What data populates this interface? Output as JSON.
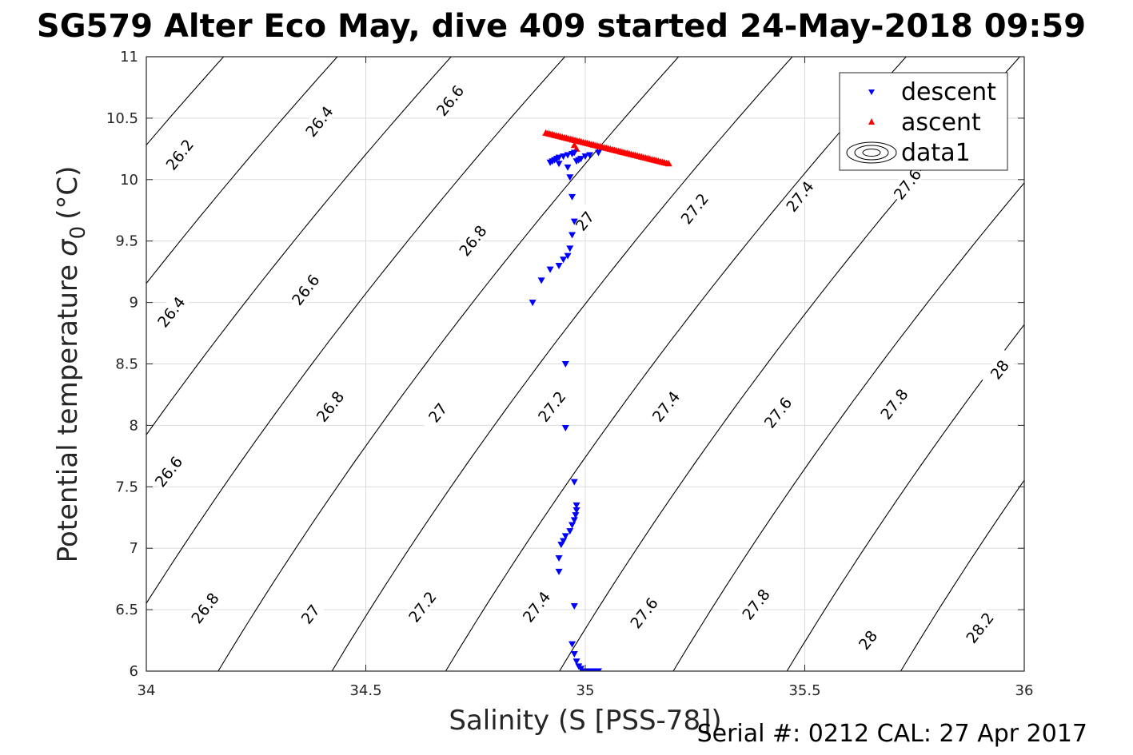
{
  "chart_data": {
    "type": "scatter",
    "title": "SG579 Alter Eco May, dive 409 started 24-May-2018 09:59",
    "xlabel": "Salinity (S [PSS-78])",
    "ylabel": "Potential temperature",
    "ylabel_symbol": "σ",
    "ylabel_subscript": "0",
    "ylabel_unit": "(°C)",
    "xlim": [
      34,
      36
    ],
    "ylim": [
      6,
      11
    ],
    "xticks": [
      34,
      34.5,
      35,
      35.5,
      36
    ],
    "xtick_labels": [
      "34",
      "34.5",
      "35",
      "35.5",
      "36"
    ],
    "yticks": [
      6,
      6.5,
      7,
      7.5,
      8,
      8.5,
      9,
      9.5,
      10,
      10.5,
      11
    ],
    "ytick_labels": [
      "6",
      "6.5",
      "7",
      "7.5",
      "8",
      "8.5",
      "9",
      "9.5",
      "10",
      "10.5",
      "11"
    ],
    "grid": true,
    "legend_position": "top-right",
    "colors": {
      "descent": "#0000ff",
      "ascent": "#ff0000",
      "contour": "#000000",
      "grid": "#dcdcdc"
    },
    "series": [
      {
        "name": "descent",
        "marker": "triangle-down",
        "x": [
          34.88,
          34.9,
          34.92,
          34.94,
          34.95,
          34.96,
          34.965,
          34.97,
          34.975,
          34.97,
          34.965,
          34.96,
          34.94,
          34.92,
          34.925,
          34.93,
          34.935,
          34.94,
          34.95,
          34.96,
          34.97,
          34.975,
          34.98,
          34.985,
          34.99,
          35.0,
          35.01,
          35.03,
          34.955,
          34.955,
          34.975,
          34.95,
          34.945,
          34.94,
          34.94,
          34.955,
          34.965,
          34.97,
          34.975,
          34.978,
          34.98,
          34.98,
          34.975,
          34.97,
          34.975,
          34.98,
          34.985,
          34.99,
          34.995,
          35.0,
          35.01,
          35.02,
          35.03
        ],
        "y": [
          9.0,
          9.18,
          9.27,
          9.3,
          9.35,
          9.38,
          9.44,
          9.55,
          9.66,
          9.86,
          10.02,
          10.1,
          10.13,
          10.14,
          10.15,
          10.16,
          10.17,
          10.18,
          10.19,
          10.2,
          10.21,
          10.22,
          10.15,
          10.16,
          10.17,
          10.19,
          10.2,
          10.22,
          8.5,
          7.98,
          7.54,
          7.06,
          7.03,
          6.92,
          6.81,
          7.1,
          7.14,
          7.19,
          7.23,
          7.27,
          7.31,
          7.35,
          6.53,
          6.22,
          6.14,
          6.08,
          6.04,
          6.02,
          6.0,
          6.0,
          6.0,
          6.0,
          6.0
        ]
      },
      {
        "name": "ascent",
        "marker": "triangle-up",
        "x_start": 34.91,
        "y_start": 10.38,
        "x_end": 35.19,
        "y_end": 10.13,
        "count": 60,
        "x_extra": [
          34.975,
          34.98
        ],
        "y_extra": [
          10.28,
          10.25
        ]
      },
      {
        "name": "data1",
        "marker": "contour"
      }
    ],
    "contours": [
      {
        "level": 26.2,
        "label": "26.2"
      },
      {
        "level": 26.4,
        "label": "26.4"
      },
      {
        "level": 26.6,
        "label": "26.6"
      },
      {
        "level": 26.8,
        "label": "26.8"
      },
      {
        "level": 27.0,
        "label": "27"
      },
      {
        "level": 27.2,
        "label": "27.2"
      },
      {
        "level": 27.4,
        "label": "27.4"
      },
      {
        "level": 27.6,
        "label": "27.6"
      },
      {
        "level": 27.8,
        "label": "27.8"
      },
      {
        "level": 28.0,
        "label": "28"
      },
      {
        "level": 28.2,
        "label": "28.2"
      }
    ],
    "contour_labels": [
      {
        "text": "26.2",
        "x": 34.077,
        "y": 10.2
      },
      {
        "text": "26.4",
        "x": 34.395,
        "y": 10.47
      },
      {
        "text": "26.6",
        "x": 34.693,
        "y": 10.64
      },
      {
        "text": "26.4",
        "x": 34.058,
        "y": 8.92
      },
      {
        "text": "26.6",
        "x": 34.364,
        "y": 9.1
      },
      {
        "text": "26.8",
        "x": 34.745,
        "y": 9.5
      },
      {
        "text": "27",
        "x": 35.0,
        "y": 9.66
      },
      {
        "text": "27.2",
        "x": 35.25,
        "y": 9.76
      },
      {
        "text": "27.4",
        "x": 35.49,
        "y": 9.86
      },
      {
        "text": "27.6",
        "x": 35.735,
        "y": 9.96
      },
      {
        "text": "26.6",
        "x": 34.052,
        "y": 7.62
      },
      {
        "text": "26.8",
        "x": 34.42,
        "y": 8.15
      },
      {
        "text": "27",
        "x": 34.665,
        "y": 8.1
      },
      {
        "text": "27.2",
        "x": 34.925,
        "y": 8.15
      },
      {
        "text": "27.4",
        "x": 35.185,
        "y": 8.15
      },
      {
        "text": "27.6",
        "x": 35.44,
        "y": 8.1
      },
      {
        "text": "27.8",
        "x": 35.705,
        "y": 8.17
      },
      {
        "text": "28",
        "x": 35.945,
        "y": 8.45
      },
      {
        "text": "26.8",
        "x": 34.135,
        "y": 6.51
      },
      {
        "text": "27",
        "x": 34.375,
        "y": 6.46
      },
      {
        "text": "27.2",
        "x": 34.63,
        "y": 6.52
      },
      {
        "text": "27.4",
        "x": 34.89,
        "y": 6.52
      },
      {
        "text": "27.6",
        "x": 35.135,
        "y": 6.47
      },
      {
        "text": "27.8",
        "x": 35.39,
        "y": 6.54
      },
      {
        "text": "28",
        "x": 35.645,
        "y": 6.25
      },
      {
        "text": "28.2",
        "x": 35.9,
        "y": 6.35
      }
    ]
  },
  "legend": {
    "items": [
      {
        "label": "descent"
      },
      {
        "label": "ascent"
      },
      {
        "label": "data1"
      }
    ]
  },
  "footer": {
    "serial": "Serial #: 0212  CAL: 27 Apr 2017"
  }
}
